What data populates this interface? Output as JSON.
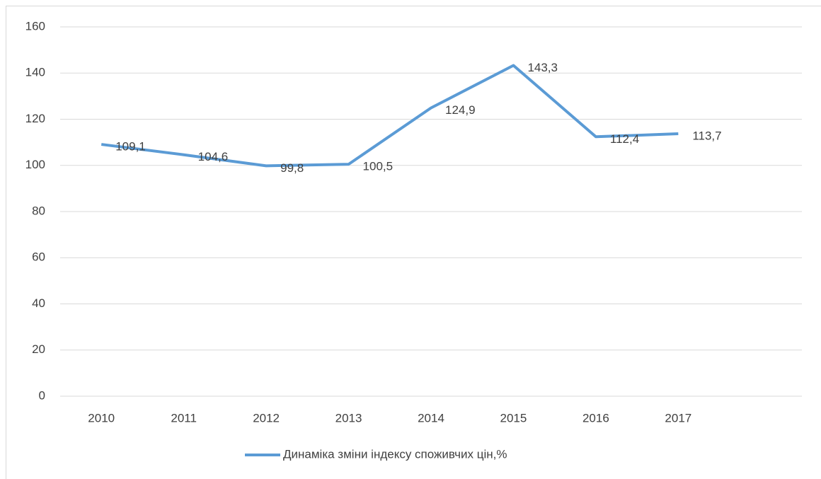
{
  "chart_data": {
    "type": "line",
    "categories": [
      "2010",
      "2011",
      "2012",
      "2013",
      "2014",
      "2015",
      "2016",
      "2017",
      null
    ],
    "series": [
      {
        "name": "Динаміка зміни індексу споживчих цін,%",
        "color": "#5b9bd5",
        "values": [
          109.1,
          104.6,
          99.8,
          100.5,
          124.9,
          143.3,
          112.4,
          113.7,
          null
        ],
        "value_labels": [
          "109,1",
          "104,6",
          "99,8",
          "100,5",
          "124,9",
          "143,3",
          "112,4",
          "113,7",
          null
        ]
      }
    ],
    "ylim": [
      0,
      160
    ],
    "yticks": [
      0,
      20,
      40,
      60,
      80,
      100,
      120,
      140,
      160
    ],
    "grid": true,
    "legend": "bottom"
  }
}
